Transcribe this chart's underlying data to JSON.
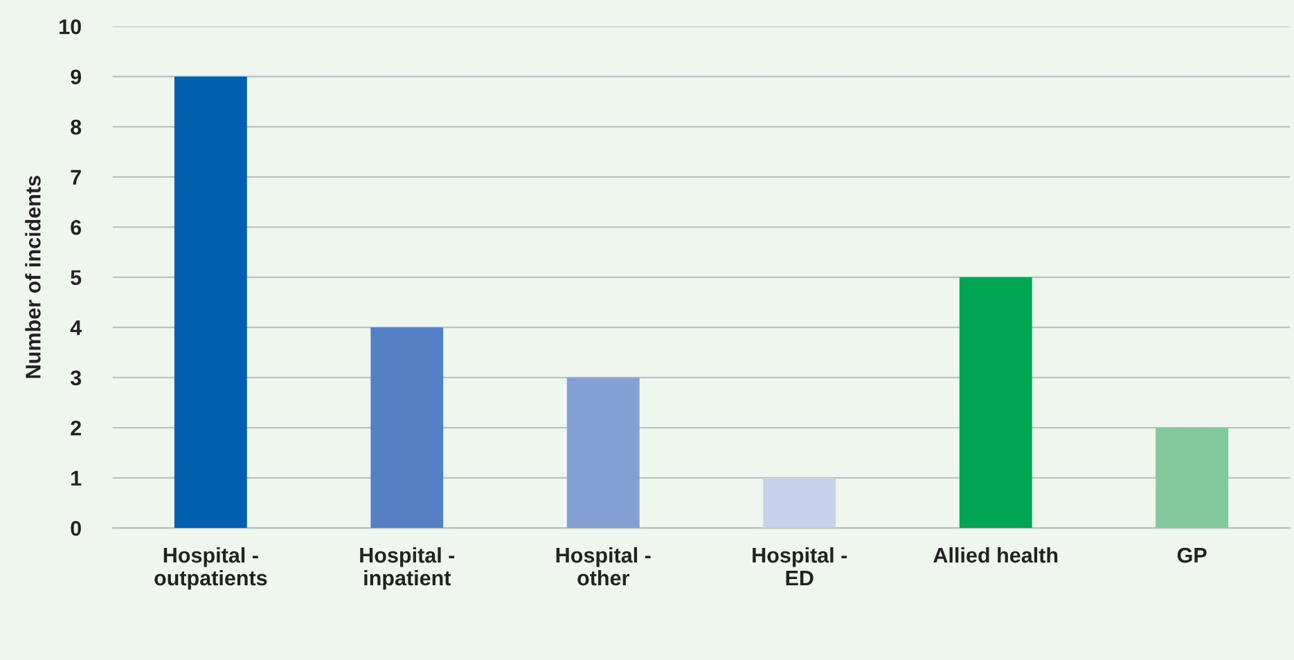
{
  "chart_data": {
    "type": "bar",
    "ylabel": "Number of incidents",
    "categories": [
      "Hospital -\noutpatients",
      "Hospital -\ninpatient",
      "Hospital -\nother",
      "Hospital -\nED",
      "Allied health",
      "GP"
    ],
    "values": [
      9,
      4,
      3,
      1,
      5,
      2
    ],
    "colors": [
      "#0060b0",
      "#5580c6",
      "#84a0d4",
      "#c8d2ec",
      "#00a651",
      "#84c99c"
    ],
    "ylim": [
      0,
      10
    ],
    "yticks": [
      0,
      1,
      2,
      3,
      4,
      5,
      6,
      7,
      8,
      9,
      10
    ],
    "grid": "y"
  }
}
